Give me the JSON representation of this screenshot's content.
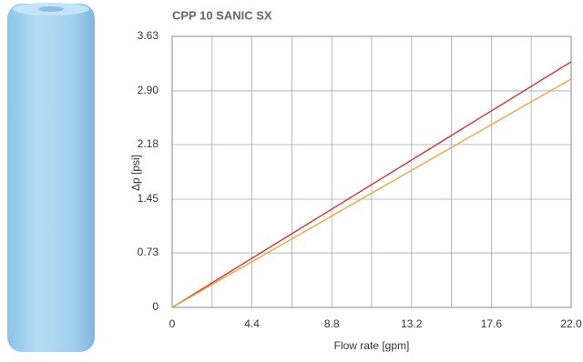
{
  "chart_data": {
    "type": "line",
    "title": "CPP 10 SANIC SX",
    "x_label": "Flow rate [gpm]",
    "y_label": "Δp [psi]",
    "x": [
      0,
      22
    ],
    "series": [
      {
        "color": "#d7262e",
        "values": [
          0,
          3.29
        ]
      },
      {
        "color": "#f0a030",
        "values": [
          0,
          3.06
        ]
      }
    ],
    "xlim": [
      0,
      22
    ],
    "xticks": [
      0,
      4.4,
      8.8,
      13.2,
      17.6,
      {
        "value": 22,
        "label": "22.0"
      }
    ],
    "xminor": [
      2.2,
      6.6,
      11,
      15.4,
      19.8
    ],
    "ylim": [
      0,
      3.63
    ],
    "yticks": [
      0,
      0.73,
      1.45,
      2.18,
      {
        "value": 2.9,
        "label": "2.90"
      },
      3.63
    ],
    "grid": true
  }
}
